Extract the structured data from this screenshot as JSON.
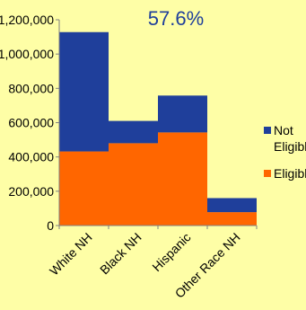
{
  "chart_data": {
    "type": "bar",
    "stacked": true,
    "annotation": "57.6%",
    "categories": [
      "White NH",
      "Black NH",
      "Hispanic",
      "Other Race NH"
    ],
    "series": [
      {
        "name": "Eligible",
        "color": "#ff6600",
        "values": [
          432000,
          480000,
          543000,
          78000
        ]
      },
      {
        "name": "Not Eligible",
        "color": "#1f3f9b",
        "values": [
          696000,
          130000,
          215000,
          82000
        ]
      }
    ],
    "ylim": [
      0,
      1200000
    ],
    "yticks": [
      0,
      200000,
      400000,
      600000,
      800000,
      1000000,
      1200000
    ],
    "ytick_labels": [
      "0",
      "200,000",
      "400,000",
      "600,000",
      "800,000",
      "1,000,000",
      "1,200,000"
    ],
    "legend_position": "right",
    "grid": false,
    "colors": {
      "background": "#fefea6",
      "annotation": "#1f3f9b"
    }
  }
}
